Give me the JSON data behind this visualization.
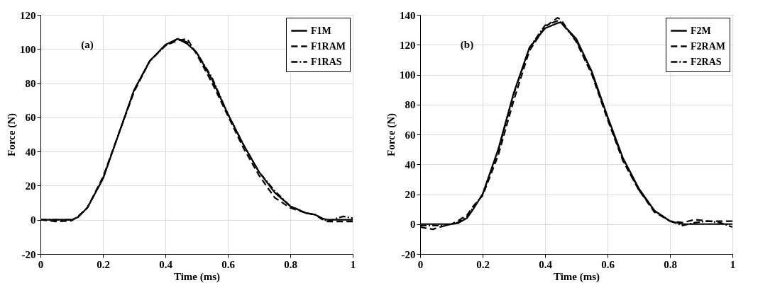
{
  "chart_data": [
    {
      "type": "line",
      "xlabel": "Time (ms)",
      "ylabel": "Force (N)",
      "annotations": [
        "(a)"
      ],
      "legend": "top right",
      "grid": true,
      "x": [
        0,
        0.05,
        0.1,
        0.12,
        0.15,
        0.2,
        0.25,
        0.3,
        0.35,
        0.4,
        0.44,
        0.47,
        0.5,
        0.55,
        0.6,
        0.65,
        0.7,
        0.75,
        0.8,
        0.85,
        0.88,
        0.9,
        0.92,
        0.95,
        0.97,
        1
      ],
      "series": [
        {
          "name": "F1M",
          "color": "#000000",
          "line_style": "solid",
          "values": [
            0,
            0,
            0,
            1.5,
            7,
            24,
            50,
            76,
            93,
            102.5,
            106,
            103,
            98,
            82,
            62,
            44,
            28,
            16,
            8,
            4,
            3,
            1,
            0,
            0,
            0,
            0
          ]
        },
        {
          "name": "F1RAM",
          "color": "#000000",
          "line_style": "dashed",
          "values": [
            0,
            -1,
            -0.5,
            2,
            7,
            25,
            50,
            75,
            93,
            102,
            105,
            106,
            97,
            80,
            61,
            42,
            26,
            13,
            7,
            4,
            3,
            0.5,
            -1,
            -1,
            -1,
            -1
          ]
        },
        {
          "name": "F1RAS",
          "color": "#000000",
          "line_style": "dashdot",
          "values": [
            0,
            0,
            0,
            1.5,
            7,
            24,
            50,
            76,
            93,
            102,
            106,
            104,
            98,
            83,
            62,
            44,
            28,
            17,
            8,
            4,
            3,
            1,
            -1,
            1,
            2,
            1
          ]
        }
      ],
      "xlim": [
        0,
        1
      ],
      "xticks": [
        0,
        0.2,
        0.4,
        0.6,
        0.8,
        1
      ],
      "ylim": [
        -20,
        120
      ],
      "yticks": [
        -20,
        0,
        20,
        40,
        60,
        80,
        100,
        120
      ]
    },
    {
      "type": "line",
      "xlabel": "Time (ms)",
      "ylabel": "Force (N)",
      "annotations": [
        "(b)"
      ],
      "legend": "top right",
      "grid": true,
      "x": [
        0,
        0.04,
        0.08,
        0.1,
        0.12,
        0.15,
        0.17,
        0.2,
        0.25,
        0.3,
        0.35,
        0.4,
        0.44,
        0.45,
        0.5,
        0.55,
        0.6,
        0.65,
        0.7,
        0.75,
        0.8,
        0.84,
        0.88,
        0.92,
        0.96,
        1
      ],
      "series": [
        {
          "name": "F2M",
          "color": "#000000",
          "line_style": "solid",
          "values": [
            0,
            0,
            0,
            0,
            0.5,
            4,
            10,
            20,
            50,
            88,
            118,
            131,
            134.5,
            135,
            124,
            102,
            72,
            44,
            24,
            9,
            2,
            0,
            0,
            0,
            0,
            0
          ]
        },
        {
          "name": "F2RAM",
          "color": "#000000",
          "line_style": "dashed",
          "values": [
            -2,
            -3.5,
            -1,
            0,
            2,
            6,
            12,
            19,
            46,
            83,
            116,
            132,
            138,
            137,
            122,
            100,
            70,
            42,
            23,
            8,
            2,
            1,
            3,
            2,
            2,
            2
          ]
        },
        {
          "name": "F2RAS",
          "color": "#000000",
          "line_style": "dashdot",
          "values": [
            -1,
            -1,
            -1,
            0,
            1,
            5,
            11,
            20,
            49,
            87,
            118,
            133,
            136,
            135,
            123,
            101,
            71,
            43,
            23,
            9,
            2,
            -1,
            1,
            2,
            1,
            -2
          ]
        }
      ],
      "xlim": [
        0,
        1
      ],
      "xticks": [
        0,
        0.2,
        0.4,
        0.6,
        0.8,
        1
      ],
      "ylim": [
        -20,
        140
      ],
      "yticks": [
        -20,
        0,
        20,
        40,
        60,
        80,
        100,
        120,
        140
      ]
    }
  ]
}
